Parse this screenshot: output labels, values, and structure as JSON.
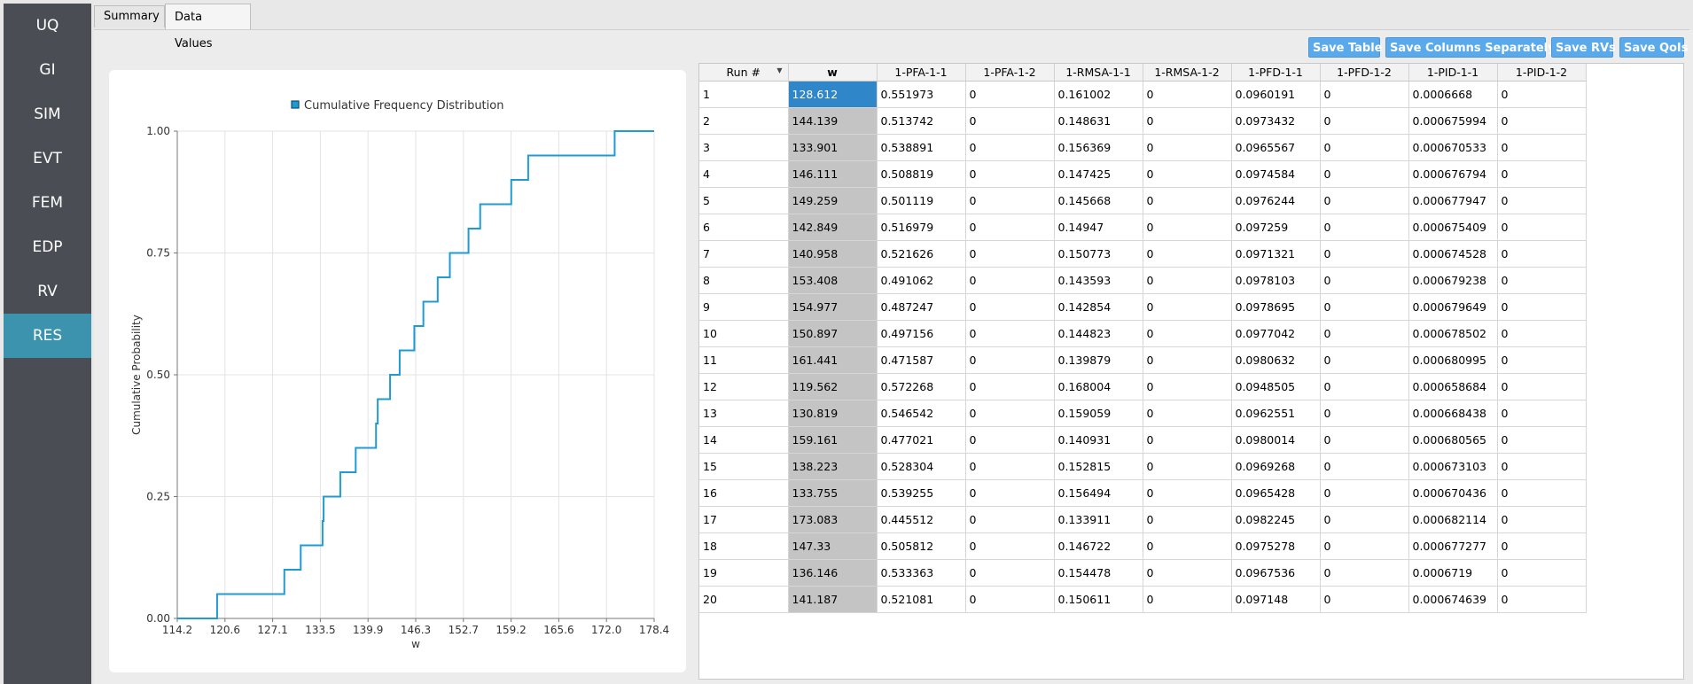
{
  "sidebar": {
    "items": [
      {
        "label": "UQ"
      },
      {
        "label": "GI"
      },
      {
        "label": "SIM"
      },
      {
        "label": "EVT"
      },
      {
        "label": "FEM"
      },
      {
        "label": "EDP"
      },
      {
        "label": "RV"
      },
      {
        "label": "RES",
        "active": true
      }
    ]
  },
  "tabs": [
    {
      "label": "Summary"
    },
    {
      "label": "Data Values",
      "active": true
    }
  ],
  "toolbar": {
    "save_table": "Save Table",
    "save_columns": "Save Columns Separately",
    "save_rvs": "Save RVs",
    "save_qois": "Save QoIs"
  },
  "colors": {
    "accent": "#3b93ad",
    "button": "#5aa9ea",
    "series": "#1f9bd1",
    "selected": "#2f86c8"
  },
  "chart_data": {
    "type": "line",
    "step": true,
    "legend": "Cumulative Frequency Distribution",
    "legend_position": "top",
    "xlabel": "w",
    "ylabel": "Cumulative Probability",
    "xlim": [
      114.2,
      178.4
    ],
    "ylim": [
      0,
      1
    ],
    "x_ticks": [
      "114.2",
      "120.6",
      "127.1",
      "133.5",
      "139.9",
      "146.3",
      "152.7",
      "159.2",
      "165.6",
      "172.0",
      "178.4"
    ],
    "y_ticks": [
      "0.00",
      "0.25",
      "0.50",
      "0.75",
      "1.00"
    ],
    "grid": true,
    "x": [
      119.562,
      128.612,
      130.819,
      133.755,
      133.901,
      136.146,
      138.223,
      140.958,
      141.187,
      142.849,
      144.139,
      146.111,
      147.33,
      149.259,
      150.897,
      153.408,
      154.977,
      159.161,
      161.441,
      173.083
    ],
    "y": [
      0.05,
      0.1,
      0.15,
      0.2,
      0.25,
      0.3,
      0.35,
      0.4,
      0.45,
      0.5,
      0.55,
      0.6,
      0.65,
      0.7,
      0.75,
      0.8,
      0.85,
      0.9,
      0.95,
      1.0
    ]
  },
  "table": {
    "columns": [
      "Run #",
      "w",
      "1-PFA-1-1",
      "1-PFA-1-2",
      "1-RMSA-1-1",
      "1-RMSA-1-2",
      "1-PFD-1-1",
      "1-PFD-1-2",
      "1-PID-1-1",
      "1-PID-1-2"
    ],
    "rows": [
      [
        "1",
        "128.612",
        "0.551973",
        "0",
        "0.161002",
        "0",
        "0.0960191",
        "0",
        "0.0006668",
        "0"
      ],
      [
        "2",
        "144.139",
        "0.513742",
        "0",
        "0.148631",
        "0",
        "0.0973432",
        "0",
        "0.000675994",
        "0"
      ],
      [
        "3",
        "133.901",
        "0.538891",
        "0",
        "0.156369",
        "0",
        "0.0965567",
        "0",
        "0.000670533",
        "0"
      ],
      [
        "4",
        "146.111",
        "0.508819",
        "0",
        "0.147425",
        "0",
        "0.0974584",
        "0",
        "0.000676794",
        "0"
      ],
      [
        "5",
        "149.259",
        "0.501119",
        "0",
        "0.145668",
        "0",
        "0.0976244",
        "0",
        "0.000677947",
        "0"
      ],
      [
        "6",
        "142.849",
        "0.516979",
        "0",
        "0.14947",
        "0",
        "0.097259",
        "0",
        "0.000675409",
        "0"
      ],
      [
        "7",
        "140.958",
        "0.521626",
        "0",
        "0.150773",
        "0",
        "0.0971321",
        "0",
        "0.000674528",
        "0"
      ],
      [
        "8",
        "153.408",
        "0.491062",
        "0",
        "0.143593",
        "0",
        "0.0978103",
        "0",
        "0.000679238",
        "0"
      ],
      [
        "9",
        "154.977",
        "0.487247",
        "0",
        "0.142854",
        "0",
        "0.0978695",
        "0",
        "0.000679649",
        "0"
      ],
      [
        "10",
        "150.897",
        "0.497156",
        "0",
        "0.144823",
        "0",
        "0.0977042",
        "0",
        "0.000678502",
        "0"
      ],
      [
        "11",
        "161.441",
        "0.471587",
        "0",
        "0.139879",
        "0",
        "0.0980632",
        "0",
        "0.000680995",
        "0"
      ],
      [
        "12",
        "119.562",
        "0.572268",
        "0",
        "0.168004",
        "0",
        "0.0948505",
        "0",
        "0.000658684",
        "0"
      ],
      [
        "13",
        "130.819",
        "0.546542",
        "0",
        "0.159059",
        "0",
        "0.0962551",
        "0",
        "0.000668438",
        "0"
      ],
      [
        "14",
        "159.161",
        "0.477021",
        "0",
        "0.140931",
        "0",
        "0.0980014",
        "0",
        "0.000680565",
        "0"
      ],
      [
        "15",
        "138.223",
        "0.528304",
        "0",
        "0.152815",
        "0",
        "0.0969268",
        "0",
        "0.000673103",
        "0"
      ],
      [
        "16",
        "133.755",
        "0.539255",
        "0",
        "0.156494",
        "0",
        "0.0965428",
        "0",
        "0.000670436",
        "0"
      ],
      [
        "17",
        "173.083",
        "0.445512",
        "0",
        "0.133911",
        "0",
        "0.0982245",
        "0",
        "0.000682114",
        "0"
      ],
      [
        "18",
        "147.33",
        "0.505812",
        "0",
        "0.146722",
        "0",
        "0.0975278",
        "0",
        "0.000677277",
        "0"
      ],
      [
        "19",
        "136.146",
        "0.533363",
        "0",
        "0.154478",
        "0",
        "0.0967536",
        "0",
        "0.0006719",
        "0"
      ],
      [
        "20",
        "141.187",
        "0.521081",
        "0",
        "0.150611",
        "0",
        "0.097148",
        "0",
        "0.000674639",
        "0"
      ]
    ]
  }
}
